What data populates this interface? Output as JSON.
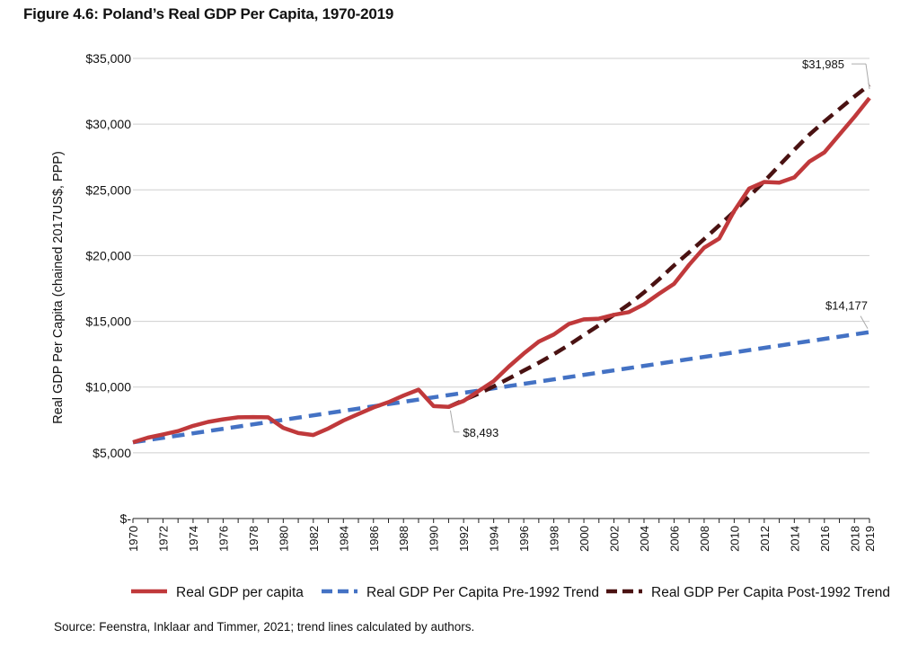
{
  "page": {
    "title": "Figure 4.6: Poland’s Real GDP Per Capita, 1970-2019",
    "source": "Source: Feenstra, Inklaar and Timmer, 2021; trend lines calculated by authors."
  },
  "chart_data": {
    "type": "line",
    "ylabel": "Real GDP Per Capita (chained 2017US$, PPP)",
    "ylim": [
      0,
      35000
    ],
    "yticks": [
      0,
      5000,
      10000,
      15000,
      20000,
      25000,
      30000,
      35000
    ],
    "ytick_labels": [
      "$-",
      "$5,000",
      "$10,000",
      "$15,000",
      "$20,000",
      "$25,000",
      "$30,000",
      "$35,000"
    ],
    "xlim": [
      1970,
      2019
    ],
    "xticks": [
      1970,
      1972,
      1974,
      1976,
      1978,
      1980,
      1982,
      1984,
      1986,
      1988,
      1990,
      1992,
      1994,
      1996,
      1998,
      2000,
      2002,
      2004,
      2006,
      2008,
      2010,
      2012,
      2014,
      2016,
      2018,
      2019
    ],
    "grid": "horizontal",
    "legend_position": "bottom",
    "series": [
      {
        "name": "Real GDP per capita",
        "color": "#c0393b",
        "style": "solid",
        "x": [
          1970,
          1971,
          1972,
          1973,
          1974,
          1975,
          1976,
          1977,
          1978,
          1979,
          1980,
          1981,
          1982,
          1983,
          1984,
          1985,
          1986,
          1987,
          1988,
          1989,
          1990,
          1991,
          1992,
          1993,
          1994,
          1995,
          1996,
          1997,
          1998,
          1999,
          2000,
          2001,
          2002,
          2003,
          2004,
          2005,
          2006,
          2007,
          2008,
          2009,
          2010,
          2011,
          2012,
          2013,
          2014,
          2015,
          2016,
          2017,
          2018,
          2019
        ],
        "values": [
          5800,
          6150,
          6400,
          6650,
          7050,
          7350,
          7550,
          7700,
          7720,
          7700,
          6900,
          6500,
          6350,
          6850,
          7450,
          7950,
          8450,
          8850,
          9350,
          9800,
          8550,
          8493,
          8950,
          9700,
          10450,
          11550,
          12550,
          13450,
          14000,
          14800,
          15150,
          15200,
          15500,
          15700,
          16300,
          17100,
          17850,
          19300,
          20600,
          21300,
          23400,
          25100,
          25600,
          25550,
          25950,
          27150,
          27850,
          29200,
          30550,
          31985
        ]
      },
      {
        "name": "Real GDP Per Capita Pre-1992 Trend",
        "color": "#4472c4",
        "style": "dashed",
        "x": [
          1970,
          2019
        ],
        "values": [
          5800,
          14177
        ]
      },
      {
        "name": "Real GDP Per Capita Post-1992 Trend",
        "color": "#4a1212",
        "style": "dashed",
        "x": [
          1991,
          1992,
          1993,
          1994,
          1995,
          1996,
          1997,
          1998,
          1999,
          2000,
          2001,
          2002,
          2003,
          2004,
          2005,
          2006,
          2007,
          2008,
          2009,
          2010,
          2011,
          2012,
          2013,
          2014,
          2015,
          2016,
          2017,
          2018,
          2019
        ],
        "values": [
          8493,
          9000,
          9500,
          10050,
          10650,
          11250,
          11850,
          12500,
          13200,
          13950,
          14700,
          15500,
          16300,
          17200,
          18200,
          19250,
          20250,
          21250,
          22300,
          23350,
          24500,
          25650,
          26850,
          28050,
          29200,
          30200,
          31150,
          32100,
          33000
        ]
      }
    ],
    "annotations": [
      {
        "text": "$31,985",
        "x": 2019,
        "y": 31985
      },
      {
        "text": "$14,177",
        "x": 2019,
        "y": 14177
      },
      {
        "text": "$8,493",
        "x": 1991,
        "y": 8493
      }
    ]
  }
}
